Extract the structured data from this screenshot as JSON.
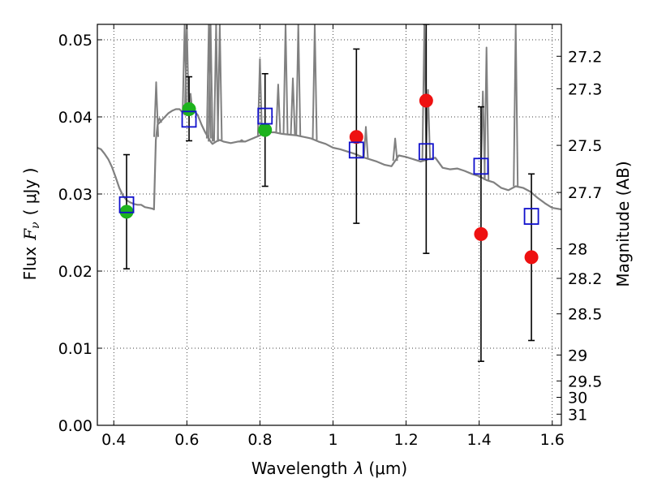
{
  "chart_data": {
    "type": "scatter",
    "xlabel_prefix": "Wavelength",
    "xlabel_math": "λ",
    "xlabel_unit": "(μm)",
    "ylabel_prefix": "Flux",
    "ylabel_math": "F",
    "ylabel_sub": "ν",
    "ylabel_unit": "( μJy )",
    "y2label": "Magnitude (AB)",
    "xlim": [
      0.355,
      1.625
    ],
    "ylim": [
      0.0,
      0.052
    ],
    "x_ticks": [
      0.4,
      0.6,
      0.8,
      1.0,
      1.2,
      1.4,
      1.6
    ],
    "x_tick_labels": [
      "0.4",
      "0.6",
      "0.8",
      "1",
      "1.2",
      "1.4",
      "1.6"
    ],
    "y_ticks": [
      0.0,
      0.01,
      0.02,
      0.03,
      0.04,
      0.05
    ],
    "y_tick_labels": [
      "0.00",
      "0.01",
      "0.02",
      "0.03",
      "0.04",
      "0.05"
    ],
    "mag_ticks": [
      27.2,
      27.3,
      27.5,
      27.7,
      28,
      28.2,
      28.5,
      29,
      29.5,
      30,
      31
    ],
    "mag_tick_labels": [
      "27.2",
      "27.3",
      "27.5",
      "27.7",
      "28",
      "28.2",
      "28.5",
      "29",
      "29.5",
      "30",
      "31"
    ],
    "grid": true,
    "colors": {
      "observed_detected": "#1db31d",
      "observed_undetected": "#ee1111",
      "model_box": "#1010cc",
      "template": "#808080",
      "errorbar": "#000000"
    },
    "series": [
      {
        "name": "template spectrum",
        "kind": "line",
        "x": [
          0.355,
          0.365,
          0.375,
          0.385,
          0.395,
          0.405,
          0.415,
          0.425,
          0.435,
          0.445,
          0.455,
          0.465,
          0.475,
          0.485,
          0.495,
          0.505,
          0.51,
          0.515,
          0.52,
          0.53,
          0.54,
          0.55,
          0.56,
          0.57,
          0.58,
          0.59,
          0.6,
          0.61,
          0.62,
          0.63,
          0.64,
          0.65,
          0.66,
          0.665,
          0.67,
          0.68,
          0.69,
          0.7,
          0.72,
          0.74,
          0.76,
          0.78,
          0.8,
          0.81,
          0.82,
          0.84,
          0.86,
          0.88,
          0.9,
          0.92,
          0.94,
          0.96,
          0.98,
          1.0,
          1.02,
          1.04,
          1.06,
          1.08,
          1.1,
          1.12,
          1.14,
          1.16,
          1.18,
          1.2,
          1.22,
          1.24,
          1.26,
          1.28,
          1.3,
          1.32,
          1.34,
          1.36,
          1.38,
          1.4,
          1.42,
          1.44,
          1.46,
          1.48,
          1.5,
          1.52,
          1.54,
          1.56,
          1.58,
          1.6,
          1.625
        ],
        "y": [
          0.036,
          0.0358,
          0.0352,
          0.0345,
          0.0335,
          0.0322,
          0.0308,
          0.0298,
          0.0292,
          0.0289,
          0.0287,
          0.0286,
          0.0286,
          0.0283,
          0.0282,
          0.0281,
          0.028,
          0.037,
          0.039,
          0.0395,
          0.04,
          0.0405,
          0.0408,
          0.041,
          0.041,
          0.0405,
          0.0402,
          0.0405,
          0.0408,
          0.0402,
          0.039,
          0.038,
          0.0372,
          0.0368,
          0.0365,
          0.0368,
          0.037,
          0.0368,
          0.0366,
          0.0368,
          0.0368,
          0.0372,
          0.0376,
          0.0378,
          0.038,
          0.038,
          0.0378,
          0.0377,
          0.0376,
          0.0374,
          0.0372,
          0.0368,
          0.0365,
          0.036,
          0.0358,
          0.0355,
          0.0352,
          0.0348,
          0.0345,
          0.0342,
          0.0338,
          0.0336,
          0.035,
          0.0348,
          0.0345,
          0.0342,
          0.0345,
          0.0347,
          0.0334,
          0.0332,
          0.0333,
          0.033,
          0.0326,
          0.0323,
          0.0318,
          0.0315,
          0.0308,
          0.0305,
          0.031,
          0.0308,
          0.0303,
          0.0295,
          0.0288,
          0.0282,
          0.028
        ]
      },
      {
        "name": "template emission lines",
        "kind": "spikes",
        "x": [
          0.516,
          0.525,
          0.594,
          0.6,
          0.61,
          0.66,
          0.665,
          0.68,
          0.69,
          0.75,
          0.8,
          0.85,
          0.87,
          0.89,
          0.905,
          0.95,
          1.09,
          1.17,
          1.25,
          1.26,
          1.41,
          1.42,
          1.5
        ],
        "top": [
          0.0445,
          0.0398,
          0.052,
          0.052,
          0.043,
          0.052,
          0.052,
          0.052,
          0.052,
          0.037,
          0.0475,
          0.0442,
          0.052,
          0.045,
          0.052,
          0.052,
          0.0387,
          0.0372,
          0.052,
          0.0435,
          0.0433,
          0.049,
          0.052
        ]
      },
      {
        "name": "observed (detected)",
        "kind": "points",
        "x": [
          0.435,
          0.606,
          0.814
        ],
        "y": [
          0.0277,
          0.041,
          0.0383
        ]
      },
      {
        "name": "observed (upper/low S/N)",
        "kind": "points",
        "x": [
          1.064,
          1.255,
          1.405,
          1.543
        ],
        "y": [
          0.0374,
          0.0421,
          0.0248,
          0.0218
        ]
      },
      {
        "name": "model photometry",
        "kind": "boxes",
        "x": [
          0.435,
          0.606,
          0.814,
          1.064,
          1.255,
          1.405,
          1.543
        ],
        "y": [
          0.0286,
          0.0397,
          0.0401,
          0.0357,
          0.0355,
          0.0336,
          0.0271
        ]
      },
      {
        "name": "error bars",
        "kind": "errorbars",
        "x": [
          0.435,
          0.606,
          0.814,
          1.064,
          1.255,
          1.405,
          1.543
        ],
        "low": [
          0.0203,
          0.0369,
          0.031,
          0.0262,
          0.0223,
          0.0083,
          0.011
        ],
        "high": [
          0.0351,
          0.0452,
          0.0456,
          0.0488,
          0.052,
          0.0413,
          0.0326
        ]
      }
    ]
  }
}
